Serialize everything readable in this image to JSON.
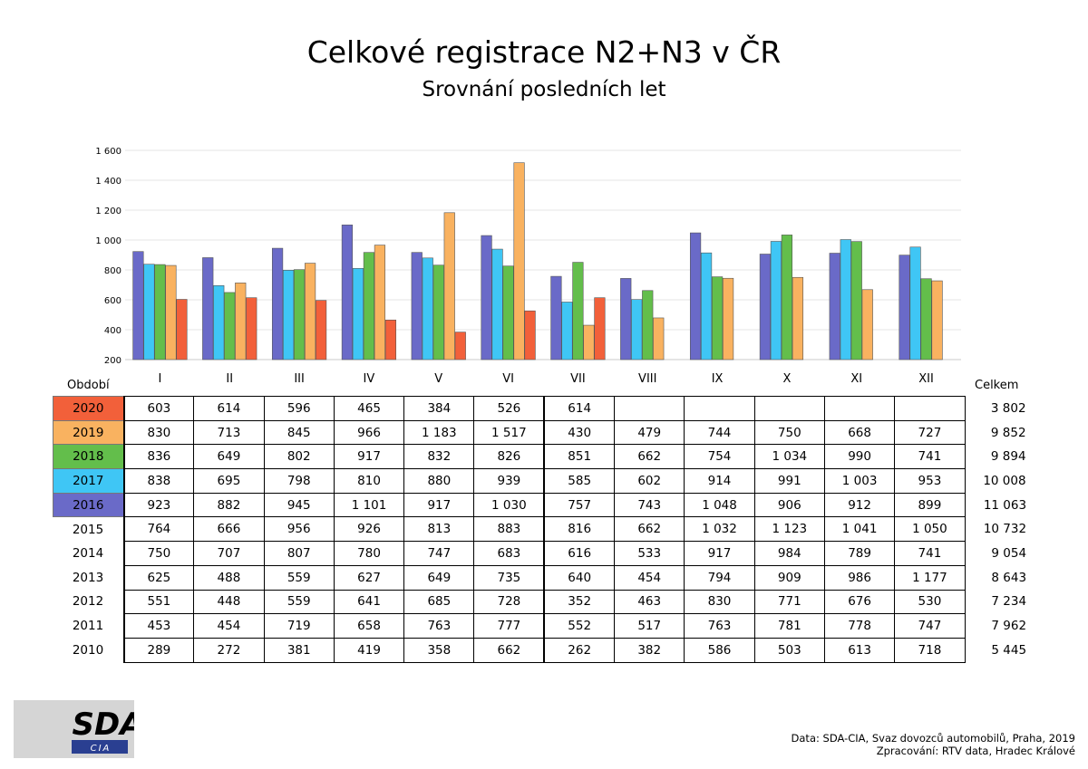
{
  "title": "Celkové registrace N2+N3 v ČR",
  "subtitle": "Srovnání posledních let",
  "period_label": "Období",
  "total_label": "Celkem",
  "logo": {
    "text": "SDA",
    "subtext": "CIA"
  },
  "source": {
    "line1": "Data: SDA-CIA, Svaz dovozců automobilů, Praha, 2019",
    "line2": "Zpracování: RTV data, Hradec Králové"
  },
  "colors": {
    "2016": "#6a6ac8",
    "2017": "#3fc6f5",
    "2018": "#63be4b",
    "2019": "#f9b260",
    "2020": "#f2603a"
  },
  "chart_data": {
    "type": "bar",
    "categories": [
      "I",
      "II",
      "III",
      "IV",
      "V",
      "VI",
      "VII",
      "VIII",
      "IX",
      "X",
      "XI",
      "XII"
    ],
    "ylim": [
      200,
      1600
    ],
    "yticks": [
      "200",
      "400",
      "600",
      "800",
      "1 000",
      "1 200",
      "1 400",
      "1 600"
    ],
    "grid": true,
    "series": [
      {
        "name": "2016",
        "values": [
          923,
          882,
          945,
          1101,
          917,
          1030,
          757,
          743,
          1048,
          906,
          912,
          899
        ]
      },
      {
        "name": "2017",
        "values": [
          838,
          695,
          798,
          810,
          880,
          939,
          585,
          602,
          914,
          991,
          1003,
          953
        ]
      },
      {
        "name": "2018",
        "values": [
          836,
          649,
          802,
          917,
          832,
          826,
          851,
          662,
          754,
          1034,
          990,
          741
        ]
      },
      {
        "name": "2019",
        "values": [
          830,
          713,
          845,
          966,
          1183,
          1517,
          430,
          479,
          744,
          750,
          668,
          727
        ]
      },
      {
        "name": "2020",
        "values": [
          603,
          614,
          596,
          465,
          384,
          526,
          614,
          null,
          null,
          null,
          null,
          null
        ]
      }
    ]
  },
  "table": {
    "rows": [
      {
        "year": "2020",
        "values": [
          "603",
          "614",
          "596",
          "465",
          "384",
          "526",
          "614",
          "",
          "",
          "",
          "",
          ""
        ],
        "total": "3 802"
      },
      {
        "year": "2019",
        "values": [
          "830",
          "713",
          "845",
          "966",
          "1 183",
          "1 517",
          "430",
          "479",
          "744",
          "750",
          "668",
          "727"
        ],
        "total": "9 852"
      },
      {
        "year": "2018",
        "values": [
          "836",
          "649",
          "802",
          "917",
          "832",
          "826",
          "851",
          "662",
          "754",
          "1 034",
          "990",
          "741"
        ],
        "total": "9 894"
      },
      {
        "year": "2017",
        "values": [
          "838",
          "695",
          "798",
          "810",
          "880",
          "939",
          "585",
          "602",
          "914",
          "991",
          "1 003",
          "953"
        ],
        "total": "10 008"
      },
      {
        "year": "2016",
        "values": [
          "923",
          "882",
          "945",
          "1 101",
          "917",
          "1 030",
          "757",
          "743",
          "1 048",
          "906",
          "912",
          "899"
        ],
        "total": "11 063"
      },
      {
        "year": "2015",
        "values": [
          "764",
          "666",
          "956",
          "926",
          "813",
          "883",
          "816",
          "662",
          "1 032",
          "1 123",
          "1 041",
          "1 050"
        ],
        "total": "10 732"
      },
      {
        "year": "2014",
        "values": [
          "750",
          "707",
          "807",
          "780",
          "747",
          "683",
          "616",
          "533",
          "917",
          "984",
          "789",
          "741"
        ],
        "total": "9 054"
      },
      {
        "year": "2013",
        "values": [
          "625",
          "488",
          "559",
          "627",
          "649",
          "735",
          "640",
          "454",
          "794",
          "909",
          "986",
          "1 177"
        ],
        "total": "8 643"
      },
      {
        "year": "2012",
        "values": [
          "551",
          "448",
          "559",
          "641",
          "685",
          "728",
          "352",
          "463",
          "830",
          "771",
          "676",
          "530"
        ],
        "total": "7 234"
      },
      {
        "year": "2011",
        "values": [
          "453",
          "454",
          "719",
          "658",
          "763",
          "777",
          "552",
          "517",
          "763",
          "781",
          "778",
          "747"
        ],
        "total": "7 962"
      },
      {
        "year": "2010",
        "values": [
          "289",
          "272",
          "381",
          "419",
          "358",
          "662",
          "262",
          "382",
          "586",
          "503",
          "613",
          "718"
        ],
        "total": "5 445"
      }
    ]
  }
}
